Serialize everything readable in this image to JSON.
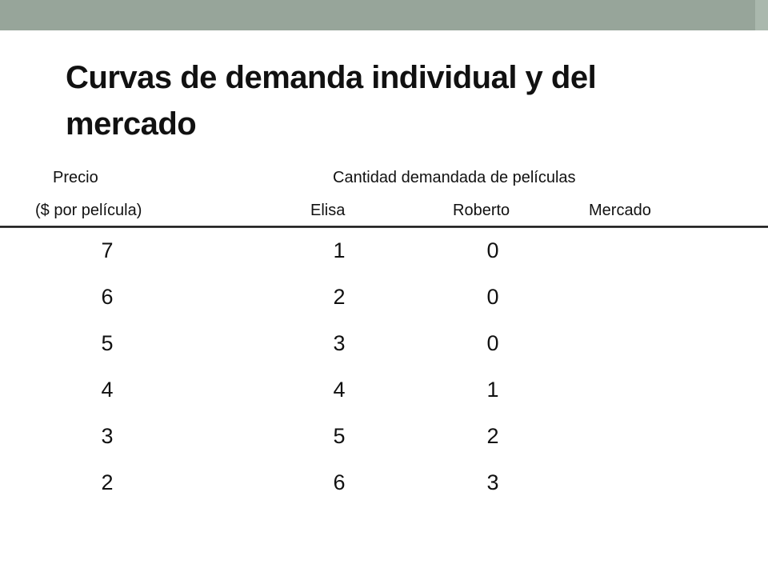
{
  "slide": {
    "title": "Curvas de demanda individual y del mercado"
  },
  "table": {
    "header_top": {
      "price": "Precio",
      "quantity": "Cantidad demandada de películas"
    },
    "header_bottom": {
      "price_unit": "($ por película)",
      "col_elisa": "Elisa",
      "col_roberto": "Roberto",
      "col_mercado": "Mercado"
    },
    "rows": [
      {
        "precio": "7",
        "elisa": "1",
        "roberto": "0",
        "mercado": ""
      },
      {
        "precio": "6",
        "elisa": "2",
        "roberto": "0",
        "mercado": ""
      },
      {
        "precio": "5",
        "elisa": "3",
        "roberto": "0",
        "mercado": ""
      },
      {
        "precio": "4",
        "elisa": "4",
        "roberto": "1",
        "mercado": ""
      },
      {
        "precio": "3",
        "elisa": "5",
        "roberto": "2",
        "mercado": ""
      },
      {
        "precio": "2",
        "elisa": "6",
        "roberto": "3",
        "mercado": ""
      }
    ]
  },
  "colors": {
    "top_bar": "#97a59a",
    "text": "#111111"
  }
}
